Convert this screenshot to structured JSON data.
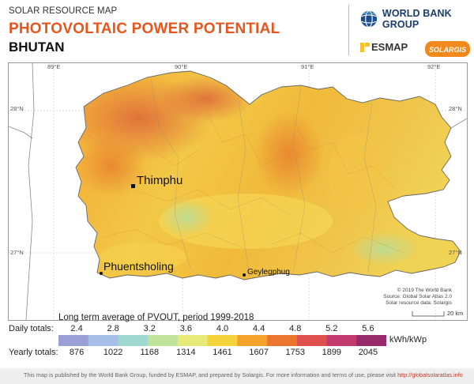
{
  "header": {
    "small_title": "SOLAR RESOURCE MAP",
    "title": "PHOTOVOLTAIC POWER POTENTIAL",
    "country": "BHUTAN"
  },
  "logos": {
    "world_bank": "WORLD BANK GROUP",
    "esmap": "ESMAP",
    "solargis": "SOLARGIS"
  },
  "map": {
    "longitude_ticks": [
      "89°E",
      "90°E",
      "91°E",
      "92°E"
    ],
    "latitude_ticks": [
      "28°N",
      "27°N"
    ],
    "cities": [
      {
        "name": "Thimphu",
        "capital": true
      },
      {
        "name": "Phuentsholing",
        "capital": false
      },
      {
        "name": "Geylegphug",
        "capital": false
      }
    ],
    "credit_lines": [
      "© 2019 The World Bank",
      "Source: Global Solar Atlas 2.0",
      "Solar resource data: Solargis"
    ],
    "scale_label": "20 km"
  },
  "legend": {
    "title": "Long term average of PVOUT, period 1999-2018",
    "daily_label": "Daily totals:",
    "yearly_label": "Yearly totals:",
    "daily_values": [
      "2.4",
      "2.8",
      "3.2",
      "3.6",
      "4.0",
      "4.4",
      "4.8",
      "5.2",
      "5.6"
    ],
    "yearly_values": [
      "876",
      "1022",
      "1168",
      "1314",
      "1461",
      "1607",
      "1753",
      "1899",
      "2045"
    ],
    "unit": "kWh/kWp",
    "colors": [
      "#9a9fd6",
      "#a6bfe6",
      "#9fd8d0",
      "#bfe39b",
      "#e7ea78",
      "#f5d33c",
      "#f4a32a",
      "#eb7632",
      "#df4f4e",
      "#c23a6e",
      "#962a6a"
    ]
  },
  "footer": {
    "text": "This map is published by the World Bank Group, funded by ESMAP, and prepared by Solargis. For more information and terms of use, please visit",
    "link": "http://globalsolaratlas.info"
  }
}
